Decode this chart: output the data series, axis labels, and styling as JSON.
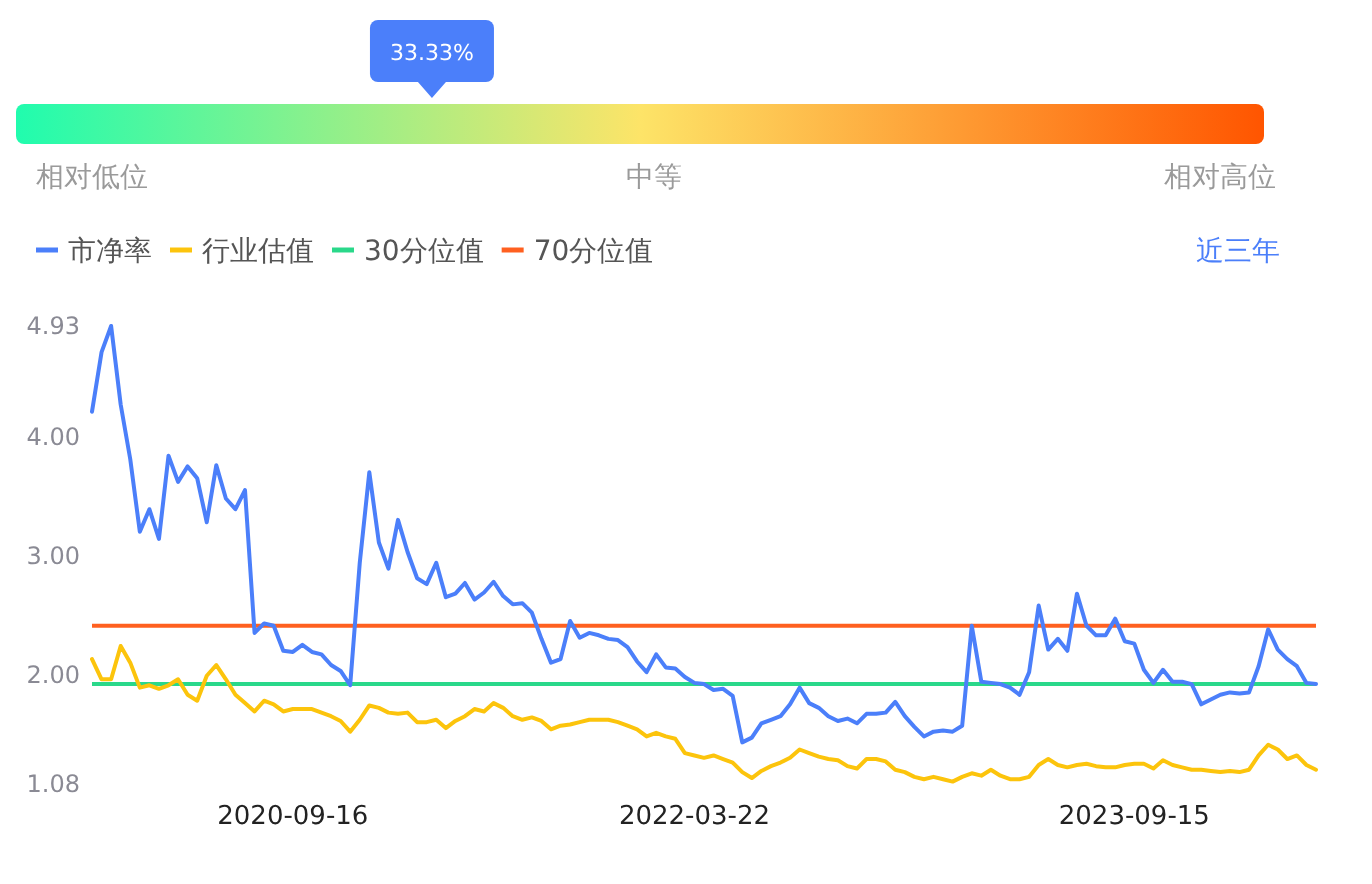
{
  "chart_data": [
    {
      "type": "other",
      "values": [
        33.33
      ],
      "value_labels": [
        "33.33%"
      ],
      "color": "#4b7ffa",
      "annotations": [
        "相对低位",
        "中等",
        "相对高位"
      ]
    },
    {
      "type": "line",
      "categories": [
        null,
        null,
        null,
        null,
        null,
        null,
        null,
        null,
        null,
        null,
        null,
        null,
        null,
        null,
        null,
        null,
        null,
        null,
        null,
        null,
        null,
        "2020-09-16",
        null,
        null,
        null,
        null,
        null,
        null,
        null,
        null,
        null,
        null,
        null,
        null,
        null,
        null,
        null,
        null,
        null,
        null,
        null,
        null,
        null,
        null,
        null,
        null,
        null,
        null,
        null,
        null,
        null,
        null,
        null,
        null,
        null,
        null,
        null,
        null,
        null,
        null,
        null,
        null,
        null,
        "2022-03-22",
        null,
        null,
        null,
        null,
        null,
        null,
        null,
        null,
        null,
        null,
        null,
        null,
        null,
        null,
        null,
        null,
        null,
        null,
        null,
        null,
        null,
        null,
        null,
        null,
        null,
        null,
        null,
        null,
        null,
        null,
        null,
        null,
        null,
        null,
        null,
        null,
        null,
        null,
        null,
        null,
        null,
        null,
        null,
        null,
        null,
        "2023-09-15",
        null,
        null,
        null,
        null,
        null,
        null,
        null,
        null,
        null,
        null,
        null,
        null,
        null,
        null,
        null,
        null,
        null,
        null,
        null
      ],
      "series": [
        {
          "name": "市净率",
          "color": "#4b7ffa",
          "values": [
            4.21,
            4.71,
            4.93,
            4.27,
            3.81,
            3.2,
            3.39,
            3.14,
            3.84,
            3.62,
            3.75,
            3.65,
            3.28,
            3.76,
            3.48,
            3.39,
            3.55,
            2.35,
            2.43,
            2.41,
            2.2,
            2.19,
            2.25,
            2.19,
            2.17,
            2.08,
            2.03,
            1.91,
            2.94,
            3.7,
            3.11,
            2.89,
            3.3,
            3.03,
            2.81,
            2.76,
            2.94,
            2.65,
            2.68,
            2.77,
            2.63,
            2.69,
            2.78,
            2.66,
            2.59,
            2.6,
            2.52,
            2.3,
            2.1,
            2.13,
            2.45,
            2.31,
            2.35,
            2.33,
            2.3,
            2.29,
            2.23,
            2.11,
            2.02,
            2.17,
            2.06,
            2.05,
            1.98,
            1.93,
            1.92,
            1.87,
            1.88,
            1.82,
            1.43,
            1.47,
            1.59,
            1.62,
            1.65,
            1.75,
            1.89,
            1.76,
            1.72,
            1.65,
            1.61,
            1.63,
            1.59,
            1.67,
            1.67,
            1.68,
            1.77,
            1.65,
            1.56,
            1.48,
            1.52,
            1.53,
            1.52,
            1.57,
            2.41,
            1.94,
            1.93,
            1.92,
            1.89,
            1.83,
            2.02,
            2.58,
            2.21,
            2.3,
            2.2,
            2.68,
            2.41,
            2.33,
            2.33,
            2.47,
            2.28,
            2.26,
            2.04,
            1.93,
            2.04,
            1.94,
            1.94,
            1.92,
            1.75,
            1.79,
            1.83,
            1.85,
            1.84,
            1.85,
            2.07,
            2.38,
            2.21,
            2.13,
            2.07,
            1.93,
            1.92
          ]
        },
        {
          "name": "行业估值",
          "color": "#fcc40c",
          "values": [
            2.13,
            1.96,
            1.96,
            2.24,
            2.1,
            1.89,
            1.91,
            1.88,
            1.91,
            1.96,
            1.83,
            1.78,
            1.99,
            2.08,
            1.96,
            1.83,
            1.76,
            1.69,
            1.78,
            1.75,
            1.69,
            1.71,
            1.71,
            1.71,
            1.68,
            1.65,
            1.61,
            1.52,
            1.62,
            1.74,
            1.72,
            1.68,
            1.67,
            1.68,
            1.6,
            1.6,
            1.62,
            1.55,
            1.61,
            1.65,
            1.71,
            1.69,
            1.76,
            1.72,
            1.65,
            1.62,
            1.64,
            1.61,
            1.54,
            1.57,
            1.58,
            1.6,
            1.62,
            1.62,
            1.62,
            1.6,
            1.57,
            1.54,
            1.48,
            1.51,
            1.48,
            1.46,
            1.34,
            1.32,
            1.3,
            1.32,
            1.29,
            1.26,
            1.18,
            1.13,
            1.19,
            1.23,
            1.26,
            1.3,
            1.37,
            1.34,
            1.31,
            1.29,
            1.28,
            1.23,
            1.21,
            1.29,
            1.29,
            1.27,
            1.2,
            1.18,
            1.14,
            1.12,
            1.14,
            1.12,
            1.1,
            1.14,
            1.17,
            1.15,
            1.2,
            1.15,
            1.12,
            1.12,
            1.14,
            1.24,
            1.29,
            1.24,
            1.22,
            1.24,
            1.25,
            1.23,
            1.22,
            1.22,
            1.24,
            1.25,
            1.25,
            1.21,
            1.28,
            1.24,
            1.22,
            1.2,
            1.2,
            1.19,
            1.18,
            1.19,
            1.18,
            1.2,
            1.32,
            1.41,
            1.37,
            1.29,
            1.32,
            1.24,
            1.2
          ]
        }
      ],
      "ref_lines": [
        {
          "axis": "y",
          "value": 1.92,
          "label": "30分位值",
          "color": "#2ad88a"
        },
        {
          "axis": "y",
          "value": 2.41,
          "label": "70分位值",
          "color": "#ff6020"
        }
      ],
      "ylim": [
        1.08,
        4.93
      ],
      "yticks": [
        1.08,
        {
          "value": 2,
          "label": "2.00"
        },
        {
          "value": 3,
          "label": "3.00"
        },
        {
          "value": 4,
          "label": "4.00"
        },
        4.93
      ],
      "legend": "top left",
      "annotations": [
        "近三年"
      ]
    }
  ]
}
